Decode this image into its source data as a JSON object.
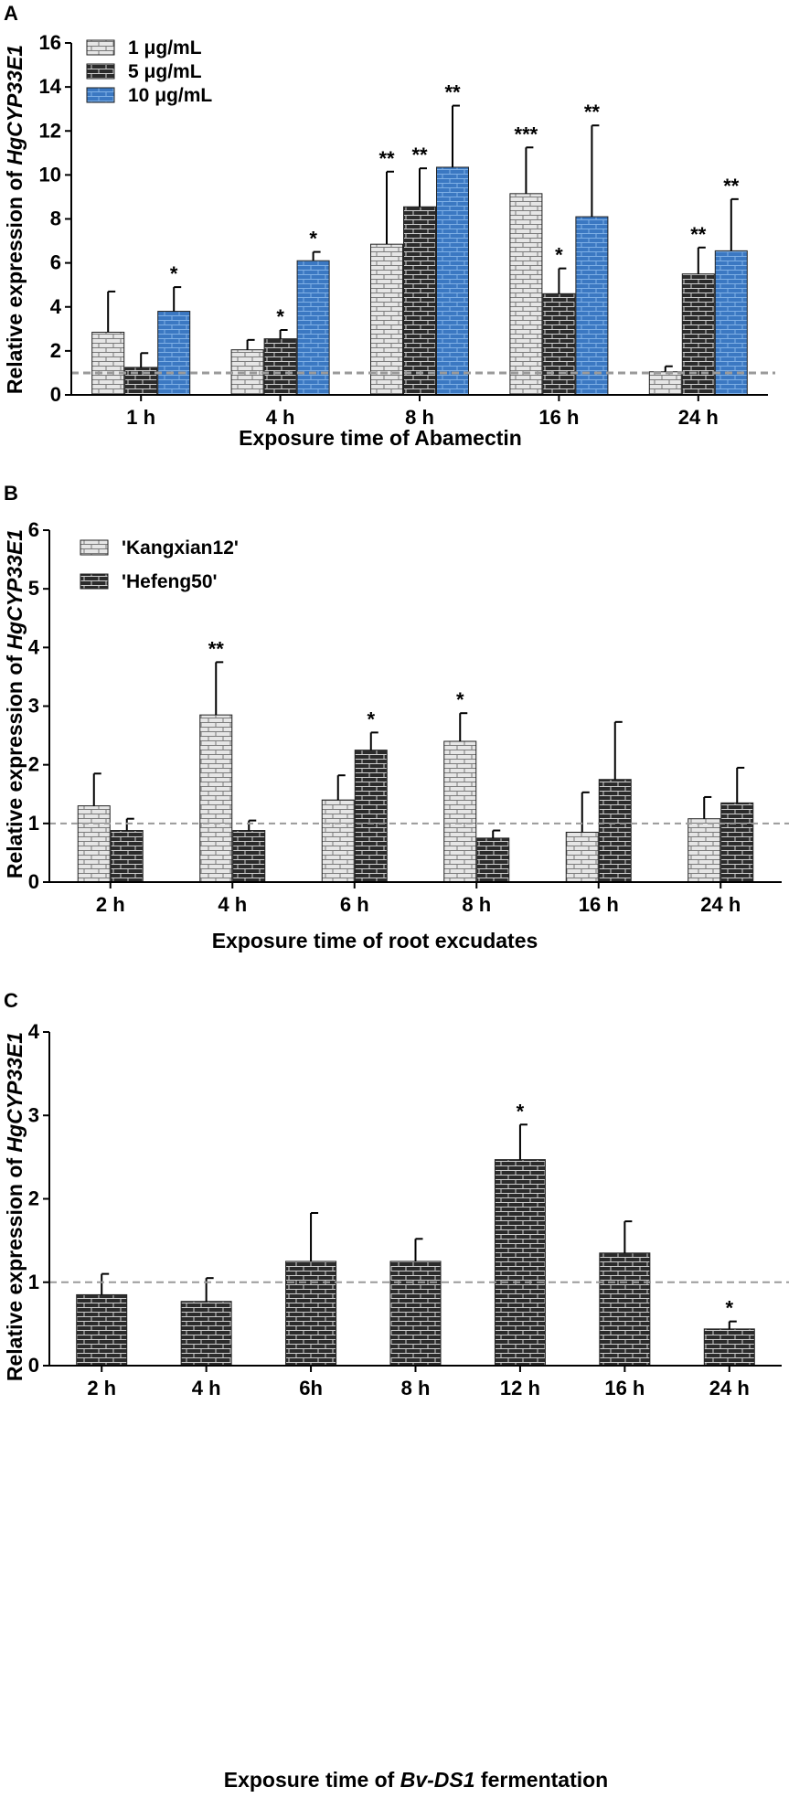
{
  "figure": {
    "panels": [
      "A",
      "B",
      "C"
    ]
  },
  "colors": {
    "light": "#e6e6e6",
    "dark": "#2b2b2b",
    "blue": "#3b78c2",
    "ref_line": "#9a9a9a"
  },
  "chart_data": [
    {
      "type": "bar",
      "panel": "A",
      "categories": [
        "1 h",
        "4 h",
        "8 h",
        "16 h",
        "24 h"
      ],
      "series": [
        {
          "name": "1 μg/mL",
          "style": "light",
          "values": [
            2.85,
            2.05,
            6.85,
            9.15,
            1.05
          ],
          "errors": [
            1.85,
            0.45,
            3.3,
            2.1,
            0.25
          ],
          "significance": [
            "",
            "",
            "**",
            "***",
            ""
          ]
        },
        {
          "name": "5 μg/mL",
          "style": "dark",
          "values": [
            1.25,
            2.55,
            8.55,
            4.6,
            5.5
          ],
          "errors": [
            0.65,
            0.4,
            1.75,
            1.15,
            1.2
          ],
          "significance": [
            "",
            "*",
            "**",
            "*",
            "**"
          ]
        },
        {
          "name": "10 μg/mL",
          "style": "blue",
          "values": [
            3.8,
            6.1,
            10.35,
            8.1,
            6.55
          ],
          "errors": [
            1.1,
            0.4,
            2.8,
            4.15,
            2.35
          ],
          "significance": [
            "*",
            "*",
            "**",
            "**",
            "**"
          ]
        }
      ],
      "ylabel_prefix": "Relative  expression of ",
      "ylabel_gene": "HgCYP33E1",
      "xlabel": "Exposure time of Abamectin",
      "ylim": [
        0,
        16
      ],
      "yticks": [
        "0",
        "2",
        "4",
        "6",
        "8",
        "10",
        "12",
        "14",
        "16"
      ],
      "reference_line": 1,
      "legend": "top-left"
    },
    {
      "type": "bar",
      "panel": "B",
      "categories": [
        "2 h",
        "4 h",
        "6 h",
        "8 h",
        "16 h",
        "24 h"
      ],
      "series": [
        {
          "name": "'Kangxian12'",
          "style": "light",
          "values": [
            1.3,
            2.85,
            1.4,
            2.4,
            0.85,
            1.08
          ],
          "errors": [
            0.55,
            0.9,
            0.42,
            0.48,
            0.68,
            0.37
          ],
          "significance": [
            "",
            "**",
            "",
            "*",
            "",
            ""
          ]
        },
        {
          "name": "'Hefeng50'",
          "style": "dark",
          "values": [
            0.88,
            0.88,
            2.25,
            0.75,
            1.75,
            1.35
          ],
          "errors": [
            0.2,
            0.17,
            0.3,
            0.13,
            0.98,
            0.6
          ],
          "significance": [
            "",
            "",
            "*",
            "",
            "",
            ""
          ]
        }
      ],
      "ylabel_prefix": "Relative  expression of ",
      "ylabel_gene": "HgCYP33E1",
      "xlabel": "Exposure time of root excudates",
      "ylim": [
        0,
        6
      ],
      "yticks": [
        "0",
        "1",
        "2",
        "3",
        "4",
        "5",
        "6"
      ],
      "reference_line": 1,
      "legend": "top-left"
    },
    {
      "type": "bar",
      "panel": "C",
      "categories": [
        "2 h",
        "4 h",
        "6h",
        "8 h",
        "12 h",
        "16 h",
        "24 h"
      ],
      "series": [
        {
          "name": "Bv-DS1 fermentation",
          "style": "dark",
          "values": [
            0.85,
            0.77,
            1.25,
            1.25,
            2.47,
            1.35,
            0.44
          ],
          "errors": [
            0.25,
            0.28,
            0.58,
            0.27,
            0.42,
            0.38,
            0.09
          ],
          "significance": [
            "",
            "",
            "",
            "",
            "*",
            "",
            "*"
          ]
        }
      ],
      "ylabel_prefix": "Relative expression of ",
      "ylabel_gene": "HgCYP33E1",
      "xlabel_prefix": "Exposure time of ",
      "xlabel_gene": "Bv-DS1",
      "xlabel_suffix": " fermentation",
      "ylim": [
        0,
        4
      ],
      "yticks": [
        "0",
        "1",
        "2",
        "3",
        "4"
      ],
      "reference_line": 1
    }
  ]
}
